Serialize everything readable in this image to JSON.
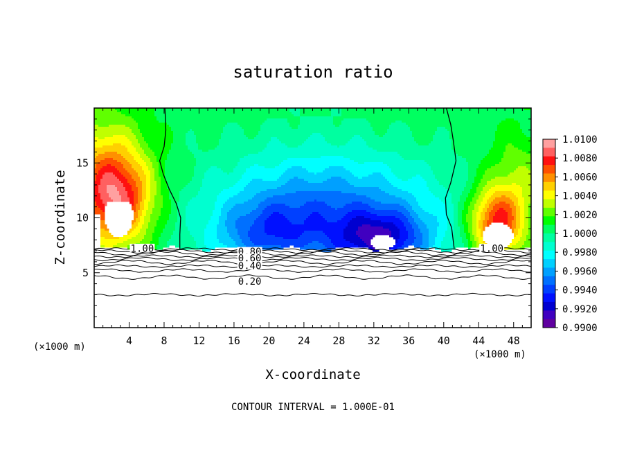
{
  "chart_data": {
    "type": "heatmap",
    "title": "saturation ratio",
    "xlabel": "X-coordinate",
    "ylabel": "Z-coordinate",
    "x_unit": "(×1000 m)",
    "x_unit_right": "(×1000 m)",
    "xlim": [
      0,
      50
    ],
    "ylim": [
      0,
      20
    ],
    "x_ticks": [
      4,
      8,
      12,
      16,
      20,
      24,
      28,
      32,
      36,
      40,
      44,
      48
    ],
    "y_ticks": [
      5,
      10,
      15
    ],
    "colorbar": {
      "min": 0.99,
      "max": 1.01,
      "labels": [
        "1.0100",
        "1.0080",
        "1.0060",
        "1.0040",
        "1.0020",
        "1.0000",
        "0.9980",
        "0.9960",
        "0.9940",
        "0.9920",
        "0.9900"
      ],
      "colors": [
        "#ffa0a0",
        "#ff6060",
        "#ff1010",
        "#ff5000",
        "#ff9000",
        "#ffd000",
        "#ffff00",
        "#c0ff00",
        "#60ff00",
        "#00ff00",
        "#00ff60",
        "#00ffa0",
        "#00ffd0",
        "#00ffff",
        "#00d0ff",
        "#00a0ff",
        "#0070ff",
        "#0040ff",
        "#0010ff",
        "#0000d0",
        "#4000c0",
        "#6000a0"
      ]
    },
    "contour_labels": [
      {
        "text": "1.00",
        "x": 5.5,
        "z": 7.2
      },
      {
        "text": "0.80",
        "x": 17.8,
        "z": 6.9
      },
      {
        "text": "0.60",
        "x": 17.8,
        "z": 6.3
      },
      {
        "text": "0.40",
        "x": 17.8,
        "z": 5.6
      },
      {
        "text": "0.20",
        "x": 17.8,
        "z": 4.2
      },
      {
        "text": "1.00",
        "x": 45.5,
        "z": 7.2
      }
    ],
    "contour_interval_text": "CONTOUR INTERVAL = 1.000E-01"
  }
}
